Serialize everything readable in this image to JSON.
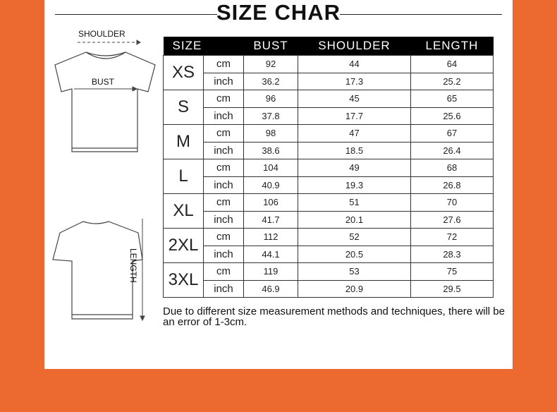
{
  "title": "SIZE CHAR",
  "diagram": {
    "shoulder": "SHOULDER",
    "bust": "BUST",
    "length": "LENGTH"
  },
  "headers": [
    "SIZE",
    "BUST",
    "SHOULDER",
    "LENGTH"
  ],
  "units": [
    "cm",
    "inch"
  ],
  "rows": [
    {
      "size": "XS",
      "cm": [
        "92",
        "44",
        "64"
      ],
      "inch": [
        "36.2",
        "17.3",
        "25.2"
      ]
    },
    {
      "size": "S",
      "cm": [
        "96",
        "45",
        "65"
      ],
      "inch": [
        "37.8",
        "17.7",
        "25.6"
      ]
    },
    {
      "size": "M",
      "cm": [
        "98",
        "47",
        "67"
      ],
      "inch": [
        "38.6",
        "18.5",
        "26.4"
      ]
    },
    {
      "size": "L",
      "cm": [
        "104",
        "49",
        "68"
      ],
      "inch": [
        "40.9",
        "19.3",
        "26.8"
      ]
    },
    {
      "size": "XL",
      "cm": [
        "106",
        "51",
        "70"
      ],
      "inch": [
        "41.7",
        "20.1",
        "27.6"
      ]
    },
    {
      "size": "2XL",
      "cm": [
        "112",
        "52",
        "72"
      ],
      "inch": [
        "44.1",
        "20.5",
        "28.3"
      ]
    },
    {
      "size": "3XL",
      "cm": [
        "119",
        "53",
        "75"
      ],
      "inch": [
        "46.9",
        "20.9",
        "29.5"
      ]
    }
  ],
  "note": "Due to different size measurement methods and techniques, there will be an error of 1-3cm."
}
